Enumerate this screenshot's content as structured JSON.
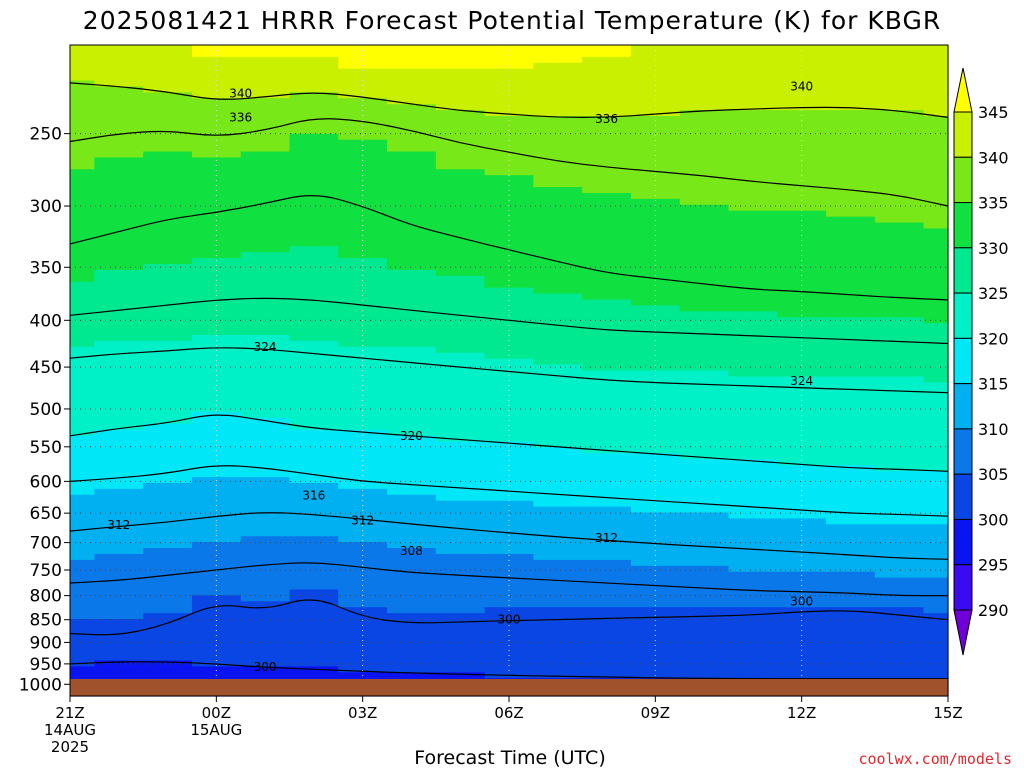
{
  "chart_data": {
    "type": "heatmap",
    "title": "2025081421 HRRR Forecast Potential Temperature (K) for KBGR",
    "xlabel": "Forecast Time (UTC)",
    "credit": "coolwx.com/models",
    "y_scale": "log",
    "y_axis_inverted": true,
    "ylim": [
      1030,
      200
    ],
    "xlim": [
      0,
      18
    ],
    "y_ticks": [
      250,
      300,
      350,
      400,
      450,
      500,
      550,
      600,
      650,
      700,
      750,
      800,
      850,
      900,
      950,
      1000
    ],
    "x_ticks": [
      {
        "h": 0,
        "lines": [
          "21Z",
          "14AUG",
          "2025"
        ]
      },
      {
        "h": 3,
        "lines": [
          "00Z",
          "15AUG"
        ]
      },
      {
        "h": 6,
        "lines": [
          "03Z"
        ]
      },
      {
        "h": 9,
        "lines": [
          "06Z"
        ]
      },
      {
        "h": 12,
        "lines": [
          "09Z"
        ]
      },
      {
        "h": 15,
        "lines": [
          "12Z"
        ]
      },
      {
        "h": 18,
        "lines": [
          "15Z"
        ]
      }
    ],
    "grid": true,
    "colorbar": {
      "levels": [
        290,
        295,
        300,
        305,
        310,
        315,
        320,
        325,
        330,
        335,
        340,
        345
      ],
      "colors": [
        "#7000d8",
        "#3a0af0",
        "#0a14f0",
        "#0a46e4",
        "#0a78e8",
        "#00b0f0",
        "#00e8f8",
        "#00f0c8",
        "#00e890",
        "#10e040",
        "#78e818",
        "#c8f000",
        "#ffff00"
      ],
      "extend": "both"
    },
    "contour_levels": [
      292,
      296,
      300,
      304,
      308,
      312,
      316,
      320,
      324,
      328,
      332,
      336,
      340
    ],
    "hours": [
      0,
      1,
      2,
      3,
      4,
      5,
      6,
      7,
      8,
      9,
      10,
      11,
      12,
      13,
      14,
      15,
      16,
      17,
      18
    ],
    "series": [
      {
        "theta": 300,
        "p": [
          950,
          945,
          945,
          950,
          958,
          963,
          968,
          972,
          975,
          978,
          980,
          982,
          984,
          985,
          986,
          986,
          986,
          986,
          986
        ]
      },
      {
        "theta": 304,
        "p": [
          880,
          885,
          860,
          815,
          830,
          800,
          845,
          858,
          855,
          852,
          850,
          847,
          845,
          843,
          840,
          833,
          830,
          840,
          850
        ]
      },
      {
        "theta": 308,
        "p": [
          775,
          770,
          760,
          750,
          740,
          735,
          745,
          755,
          760,
          765,
          770,
          775,
          780,
          785,
          790,
          792,
          795,
          800,
          800
        ]
      },
      {
        "theta": 312,
        "p": [
          680,
          672,
          665,
          655,
          648,
          652,
          660,
          668,
          676,
          683,
          690,
          696,
          702,
          707,
          712,
          717,
          722,
          728,
          730
        ]
      },
      {
        "theta": 316,
        "p": [
          600,
          595,
          588,
          575,
          580,
          590,
          600,
          605,
          610,
          615,
          620,
          625,
          630,
          635,
          640,
          645,
          650,
          652,
          655
        ]
      },
      {
        "theta": 320,
        "p": [
          535,
          525,
          518,
          505,
          515,
          525,
          530,
          535,
          540,
          545,
          550,
          555,
          560,
          565,
          570,
          575,
          580,
          582,
          585
        ]
      },
      {
        "theta": 324,
        "p": [
          440,
          435,
          432,
          428,
          430,
          435,
          440,
          445,
          450,
          455,
          460,
          465,
          468,
          470,
          472,
          474,
          476,
          478,
          480
        ]
      },
      {
        "theta": 328,
        "p": [
          395,
          390,
          385,
          380,
          378,
          380,
          385,
          390,
          395,
          400,
          405,
          410,
          412,
          414,
          416,
          418,
          420,
          422,
          424
        ]
      },
      {
        "theta": 332,
        "p": [
          330,
          320,
          310,
          305,
          298,
          290,
          300,
          315,
          325,
          335,
          345,
          355,
          360,
          365,
          370,
          372,
          375,
          378,
          380
        ]
      },
      {
        "theta": 336,
        "p": [
          255,
          250,
          248,
          252,
          248,
          240,
          242,
          248,
          256,
          262,
          268,
          272,
          275,
          278,
          282,
          285,
          288,
          292,
          300
        ]
      },
      {
        "theta": 340,
        "p": [
          220,
          222,
          225,
          230,
          228,
          225,
          228,
          232,
          236,
          238,
          240,
          240,
          238,
          236,
          235,
          234,
          234,
          236,
          240
        ]
      }
    ],
    "contour_labels": [
      {
        "text": "340",
        "h": 3.5,
        "p": 226
      },
      {
        "text": "340",
        "h": 15,
        "p": 222
      },
      {
        "text": "336",
        "h": 3.5,
        "p": 240
      },
      {
        "text": "336",
        "h": 11,
        "p": 241
      },
      {
        "text": "324",
        "h": 4,
        "p": 428
      },
      {
        "text": "324",
        "h": 15,
        "p": 466
      },
      {
        "text": "320",
        "h": 7,
        "p": 535
      },
      {
        "text": "316",
        "h": 5,
        "p": 622
      },
      {
        "text": "312",
        "h": 1,
        "p": 670
      },
      {
        "text": "312",
        "h": 6,
        "p": 662
      },
      {
        "text": "312",
        "h": 11,
        "p": 692
      },
      {
        "text": "308",
        "h": 7,
        "p": 715
      },
      {
        "text": "300",
        "h": 9,
        "p": 850
      },
      {
        "text": "300",
        "h": 15,
        "p": 812
      },
      {
        "text": "300",
        "h": 4,
        "p": 958
      }
    ]
  }
}
